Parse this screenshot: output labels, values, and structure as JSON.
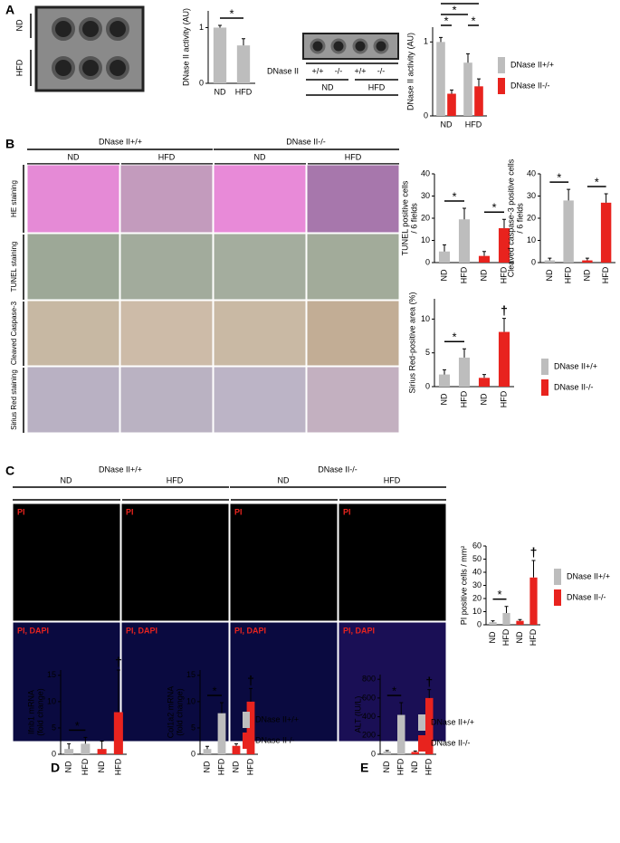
{
  "panel_letters": [
    "A",
    "B",
    "C",
    "D",
    "E"
  ],
  "panel_a": {
    "blot_rows": [
      "ND",
      "HFD"
    ],
    "genotype_label": "DNase II",
    "genotypes": [
      "+/+",
      "-/-",
      "+/+",
      "-/-"
    ],
    "diets": [
      "ND",
      "HFD"
    ]
  },
  "panel_b": {
    "genotypes": [
      "DNase II+/+",
      "DNase II-/-"
    ],
    "diets": [
      "ND",
      "HFD",
      "ND",
      "HFD"
    ],
    "rows": [
      "HE staining",
      "TUNEL staining",
      "Cleaved Caspase-3",
      "Sirius Red staining"
    ]
  },
  "panel_c": {
    "genotypes": [
      "DNase II+/+",
      "DNase II-/-"
    ],
    "diets": [
      "ND",
      "HFD",
      "ND",
      "HFD"
    ],
    "rows": [
      "PI",
      "PI, DAPI"
    ]
  },
  "legends": [
    {
      "entries": [
        {
          "name": "DNase II+/+",
          "color": "#bdbdbd"
        },
        {
          "name": "DNase II-/-",
          "color": "#e8231e"
        }
      ]
    },
    {
      "entries": [
        {
          "name": "DNase II+/+",
          "color": "#bdbdbd"
        },
        {
          "name": "DNase II-/-",
          "color": "#e8231e"
        }
      ]
    },
    {
      "entries": [
        {
          "name": "DNase II+/+",
          "color": "#bdbdbd"
        },
        {
          "name": "DNase II-/-",
          "color": "#e8231e"
        }
      ]
    },
    {
      "entries": [
        {
          "name": "DNase II+/+",
          "color": "#bdbdbd"
        },
        {
          "name": "DNase II-/-",
          "color": "#e8231e"
        }
      ]
    }
  ],
  "chart_data": [
    {
      "type": "bar",
      "ylabel": [
        "DNase II activity (AU)"
      ],
      "categories": [
        "ND",
        "HFD"
      ],
      "values": [
        1.0,
        0.68
      ],
      "errors": [
        0.04,
        0.12
      ],
      "colors": [
        "#bdbdbd",
        "#bdbdbd"
      ],
      "ylim": [
        0,
        1.3
      ],
      "yticks": [
        0,
        1
      ],
      "annotations": [
        "*"
      ]
    },
    {
      "type": "bar",
      "ylabel": [
        "DNase II activity (AU)"
      ],
      "categories": [
        "ND",
        "HFD"
      ],
      "series": [
        {
          "name": "DNase II+/+",
          "color": "#bdbdbd",
          "values": [
            1.0,
            0.72
          ],
          "errors": [
            0.06,
            0.12
          ]
        },
        {
          "name": "DNase II-/-",
          "color": "#e8231e",
          "values": [
            0.3,
            0.4
          ],
          "errors": [
            0.05,
            0.1
          ]
        }
      ],
      "ylim": [
        0,
        1.2
      ],
      "yticks": [
        0,
        1
      ],
      "annotations": [
        "*",
        "*",
        "*",
        "*"
      ]
    },
    {
      "type": "bar",
      "ylabel": [
        "TUNEL positive cells",
        "/ 6 fields"
      ],
      "categories": [
        "ND",
        "HFD",
        "ND",
        "HFD"
      ],
      "values": [
        5,
        19.5,
        3,
        15.5
      ],
      "errors": [
        3,
        5,
        2,
        4
      ],
      "colors": [
        "#bdbdbd",
        "#bdbdbd",
        "#e8231e",
        "#e8231e"
      ],
      "ylim": [
        0,
        40
      ],
      "yticks": [
        0,
        10,
        20,
        30,
        40
      ],
      "annotations": [
        "*",
        "*"
      ]
    },
    {
      "type": "bar",
      "ylabel": [
        "Cleaved caspase-3 positive cells",
        "/ 6 fields"
      ],
      "categories": [
        "ND",
        "HFD",
        "ND",
        "HFD"
      ],
      "values": [
        1,
        28,
        1,
        27
      ],
      "errors": [
        1,
        5,
        1,
        4
      ],
      "colors": [
        "#bdbdbd",
        "#bdbdbd",
        "#e8231e",
        "#e8231e"
      ],
      "ylim": [
        0,
        40
      ],
      "yticks": [
        0,
        10,
        20,
        30,
        40
      ],
      "annotations": [
        "*",
        "*"
      ]
    },
    {
      "type": "bar",
      "ylabel": [
        "Sirius Red-positive area (%)"
      ],
      "categories": [
        "ND",
        "HFD",
        "ND",
        "HFD"
      ],
      "values": [
        1.8,
        4.3,
        1.3,
        8.1
      ],
      "errors": [
        0.7,
        1.3,
        0.5,
        2
      ],
      "colors": [
        "#bdbdbd",
        "#bdbdbd",
        "#e8231e",
        "#e8231e"
      ],
      "ylim": [
        0,
        13
      ],
      "yticks": [
        0,
        5,
        10
      ],
      "annotations": [
        "*",
        "†"
      ]
    },
    {
      "type": "bar",
      "ylabel": [
        "PI positive cells / mm²"
      ],
      "categories": [
        "ND",
        "HFD",
        "ND",
        "HFD"
      ],
      "values": [
        2,
        9,
        3,
        36
      ],
      "errors": [
        1,
        5,
        1,
        13
      ],
      "colors": [
        "#bdbdbd",
        "#bdbdbd",
        "#e8231e",
        "#e8231e"
      ],
      "ylim": [
        0,
        60
      ],
      "yticks": [
        0,
        10,
        20,
        30,
        40,
        50,
        60
      ],
      "annotations": [
        "*",
        "†"
      ]
    },
    {
      "type": "bar",
      "ylabel": [
        "Ifnb1 mRNA",
        "(fold change)"
      ],
      "categories": [
        "ND",
        "HFD",
        "ND",
        "HFD"
      ],
      "values": [
        1,
        2,
        1,
        8
      ],
      "errors": [
        1,
        1.2,
        1.5,
        8
      ],
      "colors": [
        "#bdbdbd",
        "#bdbdbd",
        "#e8231e",
        "#e8231e"
      ],
      "ylim": [
        0,
        16
      ],
      "yticks": [
        0,
        5,
        10,
        15
      ],
      "annotations": [
        "*",
        "†"
      ]
    },
    {
      "type": "bar",
      "ylabel": [
        "Col1a2 mRNA",
        "(fold change)"
      ],
      "categories": [
        "ND",
        "HFD",
        "ND",
        "HFD"
      ],
      "values": [
        1,
        7.8,
        1.6,
        10
      ],
      "errors": [
        0.5,
        2,
        0.4,
        2.5
      ],
      "colors": [
        "#bdbdbd",
        "#bdbdbd",
        "#e8231e",
        "#e8231e"
      ],
      "ylim": [
        0,
        16
      ],
      "yticks": [
        0,
        5,
        10,
        15
      ],
      "annotations": [
        "*",
        "†"
      ]
    },
    {
      "type": "bar",
      "ylabel": [
        "ALT (IU/L)"
      ],
      "categories": [
        "ND",
        "HFD",
        "ND",
        "HFD"
      ],
      "values": [
        30,
        420,
        25,
        600
      ],
      "errors": [
        10,
        130,
        10,
        90
      ],
      "colors": [
        "#bdbdbd",
        "#bdbdbd",
        "#e8231e",
        "#e8231e"
      ],
      "ylim": [
        0,
        850
      ],
      "yticks": [
        0,
        200,
        400,
        600,
        800
      ],
      "annotations": [
        "*",
        "†"
      ]
    }
  ]
}
